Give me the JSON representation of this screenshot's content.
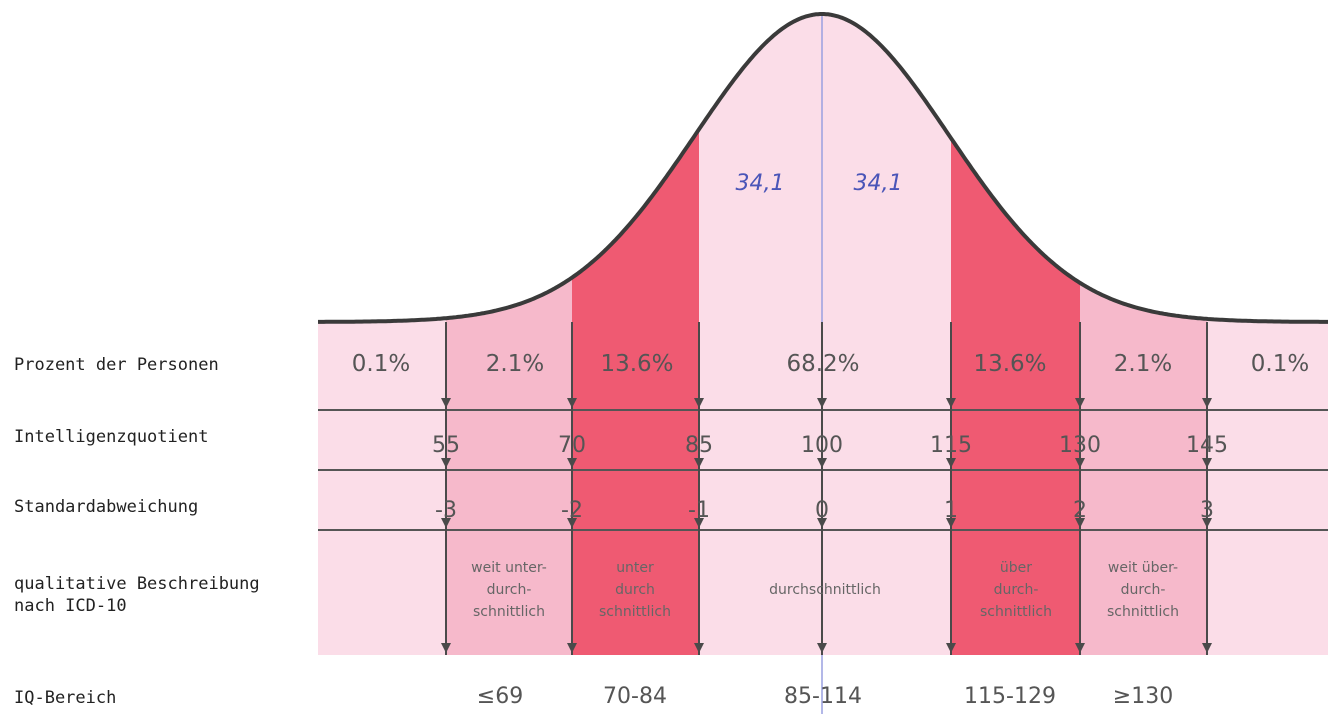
{
  "row_labels": {
    "percent": "Prozent der Personen",
    "iq": "Intelligenzquotient",
    "sd": "Standardabweichung",
    "desc_line1": "qualitative Beschreibung",
    "desc_line2": "nach ICD-10",
    "range": "IQ-Bereich"
  },
  "handwritten_notes": [
    "34,1",
    "34,1"
  ],
  "segments": [
    {
      "percent": "0.1%",
      "shade": "light"
    },
    {
      "percent": "2.1%",
      "shade": "medium"
    },
    {
      "percent": "13.6%",
      "shade": "dark"
    },
    {
      "percent": "68.2%",
      "shade": "light"
    },
    {
      "percent": "13.6%",
      "shade": "dark"
    },
    {
      "percent": "2.1%",
      "shade": "medium"
    },
    {
      "percent": "0.1%",
      "shade": "light"
    }
  ],
  "iq_ticks": [
    "55",
    "70",
    "85",
    "100",
    "115",
    "130",
    "145"
  ],
  "sd_ticks": [
    "-3",
    "-2",
    "-1",
    "0",
    "1",
    "2",
    "3"
  ],
  "descriptions": [
    [],
    [
      "weit unter-",
      "durch-",
      "schnittlich"
    ],
    [
      "unter",
      "durch",
      "schnittlich"
    ],
    [
      "durchschnittlich"
    ],
    [
      "über",
      "durch-",
      "schnittlich"
    ],
    [
      "weit über-",
      "durch-",
      "schnittlich"
    ],
    []
  ],
  "ranges": [
    "≤69",
    "70-84",
    "85-114",
    "115-129",
    "≥130"
  ],
  "colors": {
    "light": "#fbdde8",
    "medium": "#f6b9cb",
    "dark": "#ef5a72",
    "curve": "#3a3a3a",
    "center_line": "#9aa0e0",
    "arrow": "#4a4a4a",
    "handwriting": "#4a55b8"
  }
}
